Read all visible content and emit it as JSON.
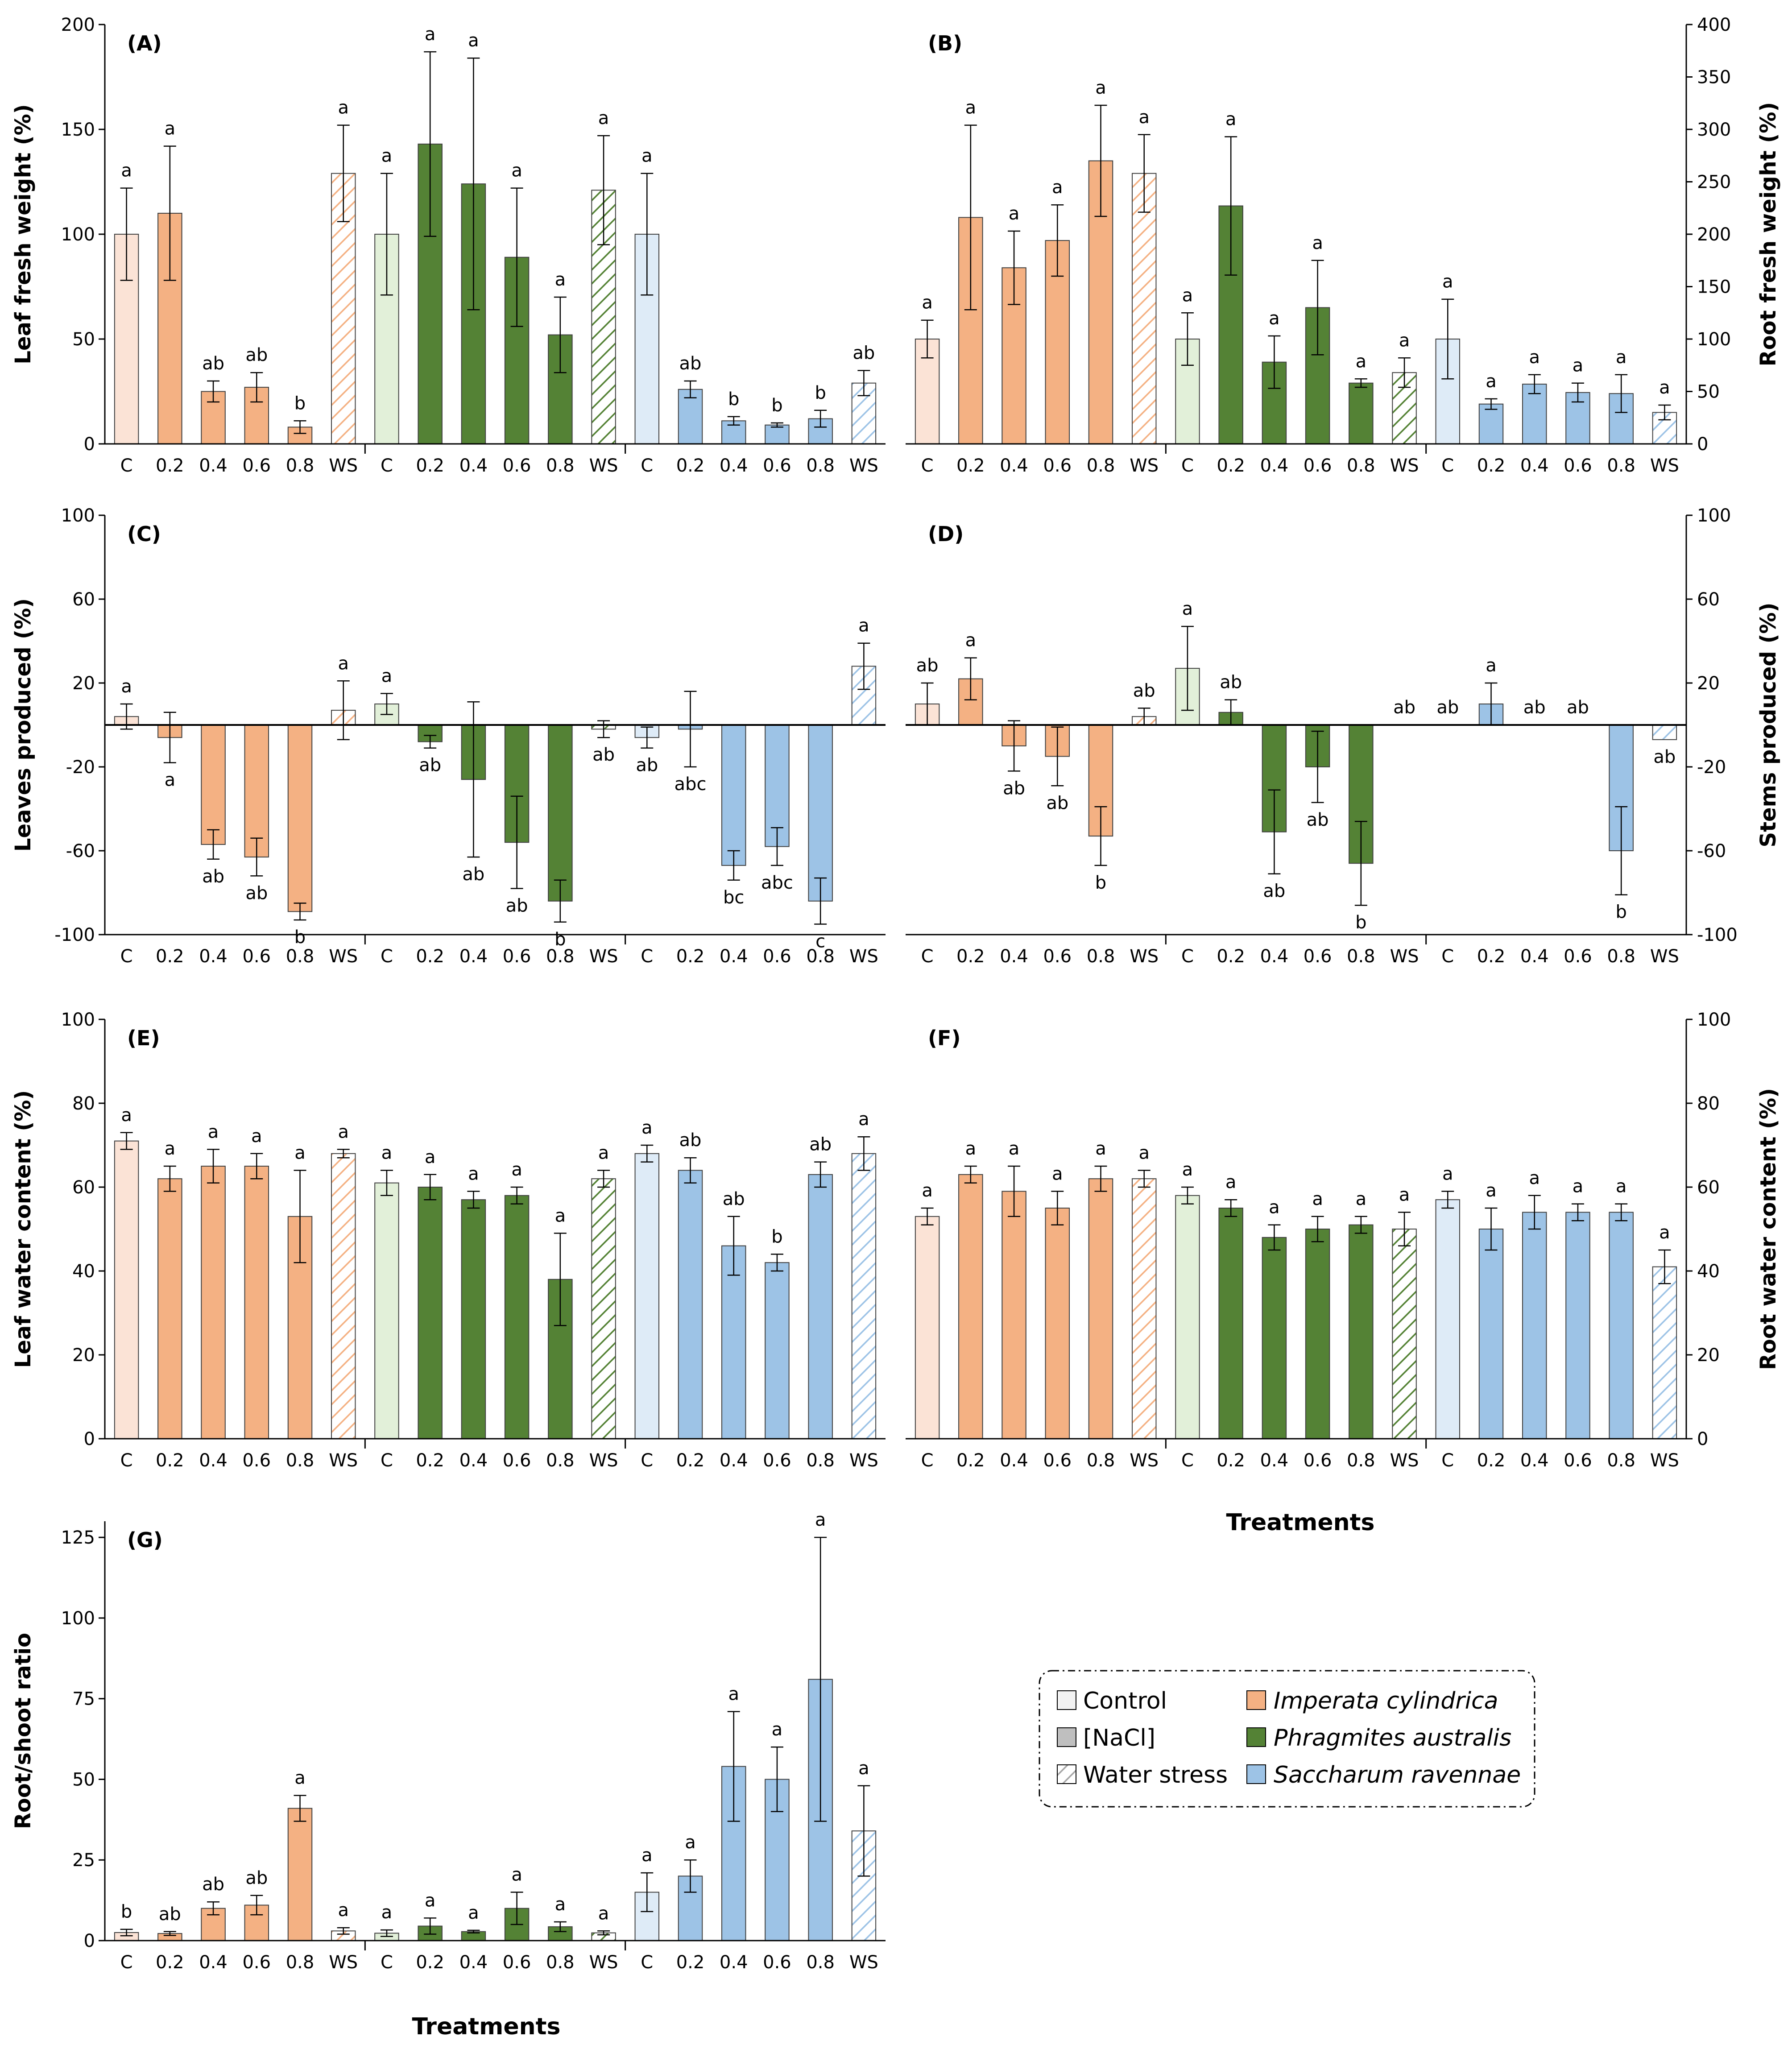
{
  "domain": "Chart",
  "xlabel": "Treatments",
  "legend": {
    "items": [
      {
        "label": "Control",
        "swatch": "control"
      },
      {
        "label": "[NaCl]",
        "swatch": "nacl"
      },
      {
        "label": "Water stress",
        "swatch": "ws"
      },
      {
        "label": "Imperata cylindrica",
        "swatch": "imperata",
        "italic": true
      },
      {
        "label": "Phragmites australis",
        "swatch": "phragmites",
        "italic": true
      },
      {
        "label": "Saccharum ravennae",
        "swatch": "saccharum",
        "italic": true
      }
    ]
  },
  "colors": {
    "imperata_ctrl": "#fbe3d6",
    "imperata": "#f4b183",
    "phragmites_ctrl": "#e2f0d9",
    "phragmites": "#548235",
    "saccharum_ctrl": "#deebf7",
    "saccharum": "#9dc3e6",
    "control_gray": "#f2f2f2",
    "nacl_gray": "#bfbfbf"
  },
  "chart_data": [
    {
      "type": "bar",
      "panel": "(A)",
      "ylabel": "Leaf fresh weight (%)",
      "axis_side": "left",
      "ylim": [
        0,
        200
      ],
      "yticks": [
        0,
        50,
        100,
        150,
        200
      ],
      "categories": [
        "C",
        "0.2",
        "0.4",
        "0.6",
        "0.8",
        "WS",
        "C",
        "0.2",
        "0.4",
        "0.6",
        "0.8",
        "WS",
        "C",
        "0.2",
        "0.4",
        "0.6",
        "0.8",
        "WS"
      ],
      "values": [
        100,
        110,
        25,
        27,
        8,
        129,
        100,
        143,
        124,
        89,
        52,
        121,
        100,
        26,
        11,
        9,
        12,
        29
      ],
      "errors": [
        22,
        32,
        5,
        7,
        3,
        23,
        29,
        44,
        60,
        33,
        18,
        26,
        29,
        4,
        2,
        1,
        4,
        6
      ],
      "labels": [
        "a",
        "a",
        "ab",
        "ab",
        "b",
        "a",
        "a",
        "a",
        "a",
        "a",
        "a",
        "a",
        "a",
        "ab",
        "b",
        "b",
        "b",
        "ab"
      ]
    },
    {
      "type": "bar",
      "panel": "(B)",
      "ylabel": "Root fresh weight (%)",
      "axis_side": "right",
      "ylim": [
        0,
        400
      ],
      "yticks": [
        0,
        50,
        100,
        150,
        200,
        250,
        300,
        350,
        400
      ],
      "categories": [
        "C",
        "0.2",
        "0.4",
        "0.6",
        "0.8",
        "WS",
        "C",
        "0.2",
        "0.4",
        "0.6",
        "0.8",
        "WS",
        "C",
        "0.2",
        "0.4",
        "0.6",
        "0.8",
        "WS"
      ],
      "values": [
        100,
        216,
        168,
        194,
        270,
        258,
        100,
        227,
        78,
        130,
        58,
        68,
        100,
        38,
        57,
        49,
        48,
        30
      ],
      "errors": [
        18,
        88,
        35,
        34,
        53,
        37,
        25,
        66,
        25,
        45,
        4,
        14,
        38,
        5,
        9,
        9,
        18,
        7
      ],
      "labels": [
        "a",
        "a",
        "a",
        "a",
        "a",
        "a",
        "a",
        "a",
        "a",
        "a",
        "a",
        "a",
        "a",
        "a",
        "a",
        "a",
        "a",
        "a"
      ]
    },
    {
      "type": "bar",
      "panel": "(C)",
      "ylabel": "Leaves produced (%)",
      "axis_side": "left",
      "ylim": [
        -100,
        100
      ],
      "yticks": [
        -100,
        -60,
        -20,
        20,
        60,
        100
      ],
      "categories": [
        "C",
        "0.2",
        "0.4",
        "0.6",
        "0.8",
        "WS",
        "C",
        "0.2",
        "0.4",
        "0.6",
        "0.8",
        "WS",
        "C",
        "0.2",
        "0.4",
        "0.6",
        "0.8",
        "WS"
      ],
      "values": [
        4,
        -6,
        -57,
        -63,
        -89,
        7,
        10,
        -8,
        -26,
        -56,
        -84,
        -2,
        -6,
        -2,
        -67,
        -58,
        -84,
        28
      ],
      "errors": [
        6,
        12,
        7,
        9,
        4,
        14,
        5,
        3,
        37,
        22,
        10,
        4,
        5,
        18,
        7,
        9,
        11,
        11
      ],
      "labels": [
        "a",
        "a",
        "ab",
        "ab",
        "b",
        "a",
        "a",
        "ab",
        "ab",
        "ab",
        "b",
        "ab",
        "ab",
        "abc",
        "bc",
        "abc",
        "c",
        "a"
      ]
    },
    {
      "type": "bar",
      "panel": "(D)",
      "ylabel": "Stems produced (%)",
      "axis_side": "right",
      "ylim": [
        -100,
        100
      ],
      "yticks": [
        -100,
        -60,
        -20,
        20,
        60,
        100
      ],
      "categories": [
        "C",
        "0.2",
        "0.4",
        "0.6",
        "0.8",
        "WS",
        "C",
        "0.2",
        "0.4",
        "0.6",
        "0.8",
        "WS",
        "C",
        "0.2",
        "0.4",
        "0.6",
        "0.8",
        "WS"
      ],
      "values": [
        10,
        22,
        -10,
        -15,
        -53,
        4,
        27,
        6,
        -51,
        -20,
        -66,
        0,
        0,
        10,
        0,
        0,
        -60,
        -7
      ],
      "errors": [
        10,
        10,
        12,
        14,
        14,
        4,
        20,
        6,
        20,
        17,
        20,
        0,
        0,
        10,
        0,
        0,
        21,
        0
      ],
      "labels": [
        "ab",
        "a",
        "ab",
        "ab",
        "b",
        "ab",
        "a",
        "ab",
        "ab",
        "ab",
        "b",
        "ab",
        "ab",
        "a",
        "ab",
        "ab",
        "b",
        "ab"
      ]
    },
    {
      "type": "bar",
      "panel": "(E)",
      "ylabel": "Leaf water content (%)",
      "axis_side": "left",
      "ylim": [
        0,
        100
      ],
      "yticks": [
        0,
        20,
        40,
        60,
        80,
        100
      ],
      "categories": [
        "C",
        "0.2",
        "0.4",
        "0.6",
        "0.8",
        "WS",
        "C",
        "0.2",
        "0.4",
        "0.6",
        "0.8",
        "WS",
        "C",
        "0.2",
        "0.4",
        "0.6",
        "0.8",
        "WS"
      ],
      "values": [
        71,
        62,
        65,
        65,
        53,
        68,
        61,
        60,
        57,
        58,
        38,
        62,
        68,
        64,
        46,
        42,
        63,
        68
      ],
      "errors": [
        2,
        3,
        4,
        3,
        11,
        1,
        3,
        3,
        2,
        2,
        11,
        2,
        2,
        3,
        7,
        2,
        3,
        4
      ],
      "labels": [
        "a",
        "a",
        "a",
        "a",
        "a",
        "a",
        "a",
        "a",
        "a",
        "a",
        "a",
        "a",
        "a",
        "ab",
        "ab",
        "b",
        "ab",
        "a"
      ]
    },
    {
      "type": "bar",
      "panel": "(F)",
      "ylabel": "Root water content (%)",
      "axis_side": "right",
      "ylim": [
        0,
        100
      ],
      "yticks": [
        0,
        20,
        40,
        60,
        80,
        100
      ],
      "categories": [
        "C",
        "0.2",
        "0.4",
        "0.6",
        "0.8",
        "WS",
        "C",
        "0.2",
        "0.4",
        "0.6",
        "0.8",
        "WS",
        "C",
        "0.2",
        "0.4",
        "0.6",
        "0.8",
        "WS"
      ],
      "values": [
        53,
        63,
        59,
        55,
        62,
        62,
        58,
        55,
        48,
        50,
        51,
        50,
        57,
        50,
        54,
        54,
        54,
        41
      ],
      "errors": [
        2,
        2,
        6,
        4,
        3,
        2,
        2,
        2,
        3,
        3,
        2,
        4,
        2,
        5,
        4,
        2,
        2,
        4
      ],
      "labels": [
        "a",
        "a",
        "a",
        "a",
        "a",
        "a",
        "a",
        "a",
        "a",
        "a",
        "a",
        "a",
        "a",
        "a",
        "a",
        "a",
        "a",
        "a"
      ]
    },
    {
      "type": "bar",
      "panel": "(G)",
      "ylabel": "Root/shoot ratio",
      "axis_side": "left",
      "ylim": [
        0,
        130
      ],
      "yticks": [
        0,
        25,
        50,
        75,
        100,
        125
      ],
      "categories": [
        "C",
        "0.2",
        "0.4",
        "0.6",
        "0.8",
        "WS",
        "C",
        "0.2",
        "0.4",
        "0.6",
        "0.8",
        "WS",
        "C",
        "0.2",
        "0.4",
        "0.6",
        "0.8",
        "WS"
      ],
      "values": [
        2.5,
        2.2,
        10,
        11,
        41,
        3,
        2.3,
        4.5,
        2.8,
        10,
        4.3,
        2.4,
        15,
        20,
        54,
        50,
        81,
        34
      ],
      "errors": [
        1,
        0.6,
        2,
        3,
        4,
        1,
        1,
        2.5,
        0.4,
        5,
        1.5,
        0.6,
        6,
        5,
        17,
        10,
        44,
        14
      ],
      "labels": [
        "b",
        "ab",
        "ab",
        "ab",
        "a",
        "a",
        "a",
        "a",
        "a",
        "a",
        "a",
        "a",
        "a",
        "a",
        "a",
        "a",
        "a",
        "a"
      ]
    }
  ]
}
